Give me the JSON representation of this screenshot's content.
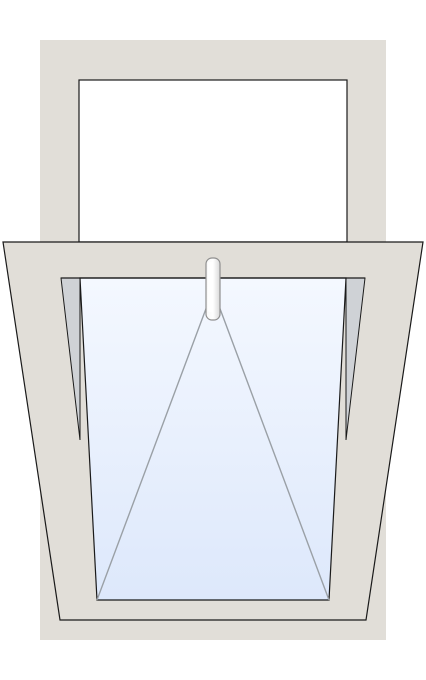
{
  "window": {
    "type": "top-hung window, sash tilted open inward",
    "colors": {
      "frame": "#e1ded8",
      "frame_edge": "#1a1a1a",
      "glass_top": "#ffffff",
      "glass_light": "#f4f8ff",
      "glass_blue": "#dde8fb",
      "reveal": "#cfd2d6",
      "opening_indicator": "#9aa0a6",
      "handle": "#ffffff",
      "handle_edge": "#8f8f8f"
    },
    "icons": {
      "handle": "window-handle-icon",
      "opening_indicator": "opening-triangle-icon"
    }
  }
}
